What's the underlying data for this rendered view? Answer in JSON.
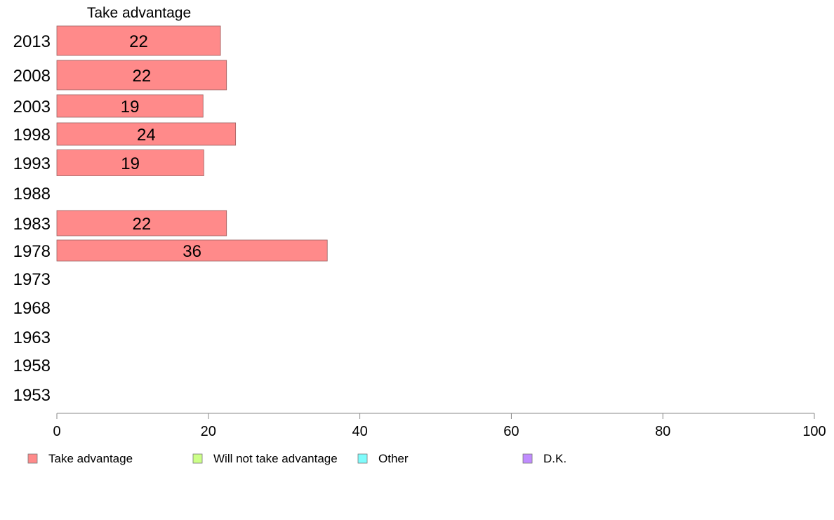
{
  "chart_data": {
    "type": "bar",
    "orientation": "horizontal",
    "title": "Take advantage",
    "categories": [
      "2013",
      "2008",
      "2003",
      "1998",
      "1993",
      "1988",
      "1983",
      "1978",
      "1973",
      "1968",
      "1963",
      "1958",
      "1953"
    ],
    "series": [
      {
        "name": "Take advantage",
        "color": "#ff8a8a",
        "values": [
          21.6,
          22.4,
          19.3,
          23.6,
          19.4,
          null,
          22.4,
          35.7,
          null,
          null,
          null,
          null,
          null
        ],
        "labels": [
          "22",
          "22",
          "19",
          "24",
          "19",
          "",
          "22",
          "36",
          "",
          "",
          "",
          "",
          ""
        ]
      }
    ],
    "xlim": [
      0,
      100
    ],
    "xticks": [
      "0",
      "20",
      "40",
      "60",
      "80",
      "100"
    ],
    "grid": false,
    "legend_position": "bottom",
    "legend": [
      {
        "label": "Take advantage",
        "color": "#ff8a8a"
      },
      {
        "label": "Will not take advantage",
        "color": "#ccff88"
      },
      {
        "label": "Other",
        "color": "#7ffcfc"
      },
      {
        "label": "D.K.",
        "color": "#c08cff"
      }
    ]
  }
}
